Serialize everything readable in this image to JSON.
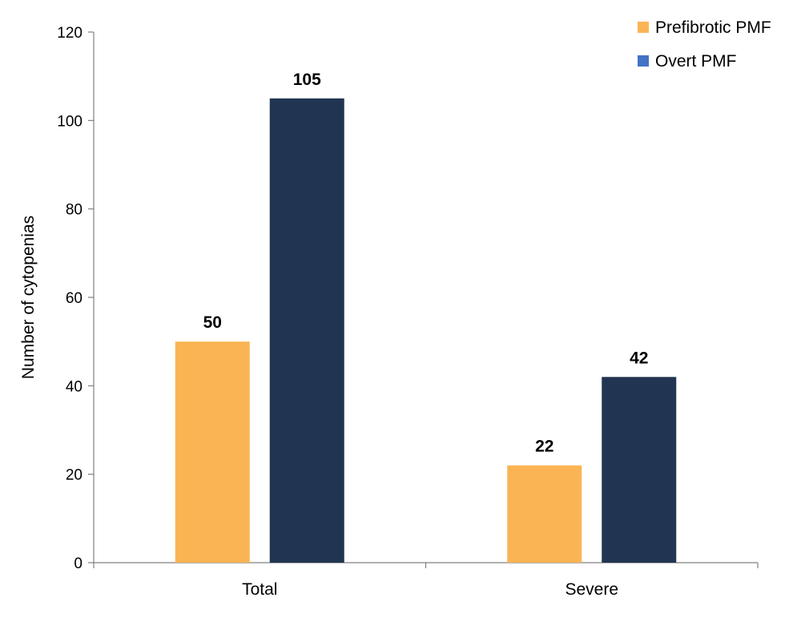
{
  "chart_data": {
    "type": "bar",
    "title": "",
    "xlabel": "",
    "ylabel": "Number of cytopenias",
    "ylim": [
      0,
      120
    ],
    "yticks": [
      0,
      20,
      40,
      60,
      80,
      100,
      120
    ],
    "grid": false,
    "legend_position": "top-right",
    "categories": [
      "Total",
      "Severe"
    ],
    "series": [
      {
        "name": "Prefibrotic PMF",
        "values": [
          50,
          22
        ],
        "bar_color": "#FBB454",
        "legend_color": "#FBB454"
      },
      {
        "name": "Overt PMF",
        "values": [
          105,
          42
        ],
        "bar_color": "#213452",
        "legend_color": "#4472C4"
      }
    ]
  }
}
